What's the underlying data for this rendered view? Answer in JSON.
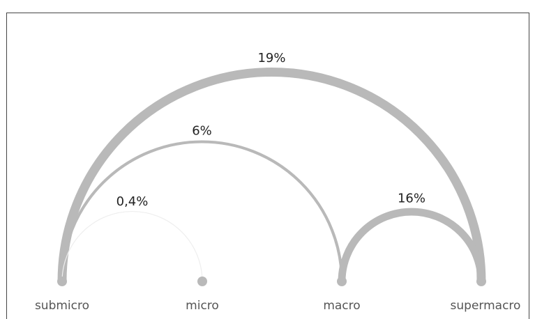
{
  "nodes": [
    {
      "id": "submicro",
      "label": "submicro"
    },
    {
      "id": "micro",
      "label": "micro"
    },
    {
      "id": "macro",
      "label": "macro"
    },
    {
      "id": "supermacro",
      "label": "supermacro"
    }
  ],
  "links": [
    {
      "from": "submicro",
      "to": "supermacro",
      "value": 19,
      "label": "19%"
    },
    {
      "from": "submicro",
      "to": "macro",
      "value": 6,
      "label": "6%"
    },
    {
      "from": "submicro",
      "to": "micro",
      "value": 0.4,
      "label": "0,4%"
    },
    {
      "from": "macro",
      "to": "supermacro",
      "value": 16,
      "label": "16%"
    }
  ],
  "colors": {
    "arc": "#b9b9b9",
    "node": "#b9b9b9",
    "faint_arc": "#eeeeee"
  }
}
